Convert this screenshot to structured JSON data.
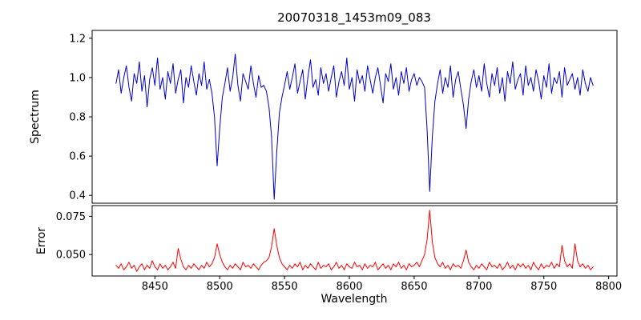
{
  "chart_data": {
    "type": "line",
    "title": "20070318_1453m09_083",
    "xlabel": "Wavelength",
    "x": {
      "start": 8420,
      "step": 2,
      "count": 185
    },
    "xlim": [
      8401.6,
      8806.4
    ],
    "xticks": [
      {
        "value": 8450,
        "label": "8450"
      },
      {
        "value": 8500,
        "label": "8500"
      },
      {
        "value": 8550,
        "label": "8550"
      },
      {
        "value": 8600,
        "label": "8600"
      },
      {
        "value": 8650,
        "label": "8650"
      },
      {
        "value": 8700,
        "label": "8700"
      },
      {
        "value": 8750,
        "label": "8750"
      },
      {
        "value": 8800,
        "label": "8800"
      }
    ],
    "grid": false,
    "legend": "none",
    "panels": [
      {
        "name": "spectrum",
        "ylabel": "Spectrum",
        "color": "#0000cd",
        "ylim": [
          0.36,
          1.24
        ],
        "yticks": [
          {
            "value": 0.4,
            "label": "0.4"
          },
          {
            "value": 0.6,
            "label": "0.6"
          },
          {
            "value": 0.8,
            "label": "0.8"
          },
          {
            "value": 1.0,
            "label": "1.0"
          },
          {
            "value": 1.2,
            "label": "1.2"
          }
        ],
        "absorption_lines": [
          {
            "wavelength": 8498,
            "depth": 0.55
          },
          {
            "wavelength": 8542,
            "depth": 0.38
          },
          {
            "wavelength": 8662,
            "depth": 0.42
          }
        ],
        "values": [
          0.97,
          1.04,
          0.92,
          1.0,
          1.06,
          0.95,
          0.88,
          1.02,
          0.97,
          1.08,
          0.93,
          1.01,
          0.85,
          0.99,
          1.05,
          0.96,
          1.1,
          0.94,
          1.0,
          0.89,
          1.03,
          0.97,
          1.07,
          0.92,
          0.99,
          1.04,
          0.87,
          1.0,
          0.95,
          1.06,
          0.98,
          0.91,
          1.02,
          0.96,
          1.08,
          0.94,
          0.99,
          0.92,
          0.8,
          0.55,
          0.74,
          0.9,
          0.97,
          1.05,
          0.93,
          1.0,
          1.12,
          0.96,
          0.88,
          1.02,
          0.98,
          0.94,
          1.06,
          0.97,
          0.9,
          1.01,
          0.95,
          0.96,
          0.93,
          0.85,
          0.7,
          0.38,
          0.62,
          0.82,
          0.9,
          0.96,
          1.03,
          0.94,
          1.0,
          1.07,
          0.92,
          0.98,
          1.04,
          0.89,
          1.0,
          1.09,
          0.95,
          0.99,
          0.91,
          1.05,
          0.97,
          1.02,
          0.93,
          1.0,
          1.06,
          0.9,
          0.98,
          1.03,
          0.96,
          1.1,
          0.94,
          1.0,
          0.88,
          1.04,
          0.97,
          1.01,
          0.93,
          1.06,
          0.99,
          0.92,
          1.0,
          1.05,
          0.96,
          0.87,
          1.02,
          0.98,
          1.07,
          0.94,
          1.0,
          0.91,
          1.03,
          0.97,
          1.05,
          0.93,
          0.99,
          1.02,
          0.96,
          1.0,
          0.98,
          0.95,
          0.73,
          0.42,
          0.7,
          0.88,
          0.97,
          1.04,
          0.92,
          1.0,
          0.95,
          1.06,
          0.9,
          0.99,
          1.03,
          0.94,
          0.86,
          0.74,
          0.89,
          0.98,
          1.04,
          0.95,
          1.01,
          0.93,
          1.07,
          0.97,
          0.9,
          1.02,
          0.96,
          1.05,
          0.92,
          1.0,
          0.88,
          1.03,
          0.97,
          1.08,
          0.94,
          0.99,
          1.02,
          0.91,
          1.06,
          0.96,
          1.0,
          0.93,
          1.04,
          0.98,
          0.89,
          1.01,
          0.95,
          1.07,
          0.92,
          1.0,
          0.97,
          1.03,
          0.9,
          1.05,
          0.96,
          0.99,
          1.02,
          0.94,
          1.0,
          0.91,
          1.04,
          0.97,
          0.93,
          1.0,
          0.96
        ]
      },
      {
        "name": "error",
        "ylabel": "Error",
        "color": "#ff0000",
        "ylim": [
          0.036,
          0.082
        ],
        "yticks": [
          {
            "value": 0.05,
            "label": "0.050"
          },
          {
            "value": 0.075,
            "label": "0.075"
          }
        ],
        "values": [
          0.043,
          0.041,
          0.044,
          0.04,
          0.042,
          0.045,
          0.041,
          0.043,
          0.039,
          0.042,
          0.044,
          0.04,
          0.043,
          0.041,
          0.046,
          0.042,
          0.04,
          0.044,
          0.041,
          0.043,
          0.04,
          0.042,
          0.045,
          0.041,
          0.054,
          0.047,
          0.042,
          0.04,
          0.043,
          0.041,
          0.044,
          0.042,
          0.04,
          0.043,
          0.041,
          0.045,
          0.042,
          0.044,
          0.048,
          0.057,
          0.05,
          0.045,
          0.042,
          0.04,
          0.043,
          0.041,
          0.044,
          0.042,
          0.04,
          0.045,
          0.042,
          0.043,
          0.041,
          0.044,
          0.042,
          0.04,
          0.043,
          0.045,
          0.046,
          0.048,
          0.055,
          0.067,
          0.056,
          0.048,
          0.044,
          0.042,
          0.04,
          0.043,
          0.041,
          0.044,
          0.042,
          0.045,
          0.04,
          0.043,
          0.041,
          0.044,
          0.042,
          0.04,
          0.045,
          0.041,
          0.043,
          0.042,
          0.044,
          0.04,
          0.042,
          0.045,
          0.041,
          0.043,
          0.04,
          0.044,
          0.042,
          0.041,
          0.045,
          0.042,
          0.043,
          0.04,
          0.044,
          0.041,
          0.043,
          0.042,
          0.045,
          0.04,
          0.042,
          0.044,
          0.041,
          0.043,
          0.04,
          0.044,
          0.042,
          0.045,
          0.041,
          0.043,
          0.04,
          0.044,
          0.042,
          0.043,
          0.045,
          0.042,
          0.046,
          0.05,
          0.06,
          0.079,
          0.058,
          0.048,
          0.044,
          0.042,
          0.045,
          0.041,
          0.043,
          0.04,
          0.044,
          0.042,
          0.043,
          0.041,
          0.046,
          0.053,
          0.045,
          0.042,
          0.04,
          0.043,
          0.041,
          0.044,
          0.042,
          0.04,
          0.045,
          0.042,
          0.043,
          0.041,
          0.044,
          0.04,
          0.042,
          0.045,
          0.041,
          0.043,
          0.04,
          0.044,
          0.042,
          0.044,
          0.041,
          0.043,
          0.04,
          0.045,
          0.042,
          0.04,
          0.044,
          0.041,
          0.043,
          0.042,
          0.045,
          0.041,
          0.044,
          0.042,
          0.056,
          0.046,
          0.042,
          0.044,
          0.041,
          0.057,
          0.046,
          0.042,
          0.044,
          0.041,
          0.043,
          0.04,
          0.042
        ]
      }
    ]
  }
}
